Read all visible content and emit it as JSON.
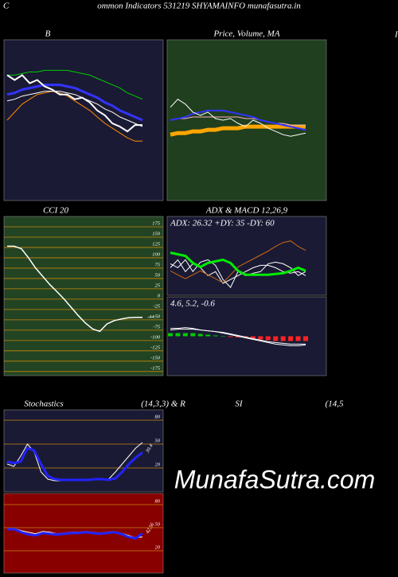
{
  "header": {
    "left": "C",
    "title": "ommon  Indicators 531219 SHYAMAINFO munafasutra.in",
    "right": "I"
  },
  "watermark": "MunafaSutra.com",
  "chart_data": [
    {
      "type": "line",
      "title": "B",
      "background": "#1a1a35",
      "ylim": [
        0,
        100
      ],
      "series": [
        {
          "color": "#00cc00",
          "width": 1,
          "values": [
            78,
            78,
            79,
            80,
            80,
            81,
            81,
            81,
            81,
            80,
            79,
            78,
            76,
            74,
            72,
            70,
            67,
            65,
            63
          ]
        },
        {
          "color": "#ff8c00",
          "width": 1,
          "values": [
            50,
            55,
            60,
            63,
            66,
            67,
            68,
            67,
            65,
            62,
            59,
            56,
            52,
            48,
            45,
            42,
            39,
            37,
            37
          ]
        },
        {
          "color": "#3333ff",
          "width": 3,
          "values": [
            66,
            67,
            69,
            70,
            71,
            72,
            72,
            72,
            71,
            70,
            68,
            66,
            64,
            61,
            59,
            56,
            54,
            52,
            50
          ]
        },
        {
          "color": "#ffffff",
          "width": 1,
          "values": [
            62,
            63,
            65,
            66,
            67,
            68,
            68,
            68,
            67,
            66,
            64,
            62,
            60,
            57,
            55,
            52,
            50,
            48,
            46
          ]
        },
        {
          "color": "#ffffff",
          "width": 2,
          "values": [
            78,
            75,
            78,
            73,
            75,
            71,
            69,
            66,
            66,
            63,
            64,
            61,
            56,
            53,
            48,
            46,
            43,
            47,
            47
          ]
        }
      ]
    },
    {
      "type": "line",
      "title": "Price, Volume, MA",
      "background": "#1f3f1f",
      "ylim": [
        0,
        100
      ],
      "series": [
        {
          "color": "#ffa500",
          "width": 5,
          "values": [
            41,
            42,
            42,
            43,
            43,
            44,
            44,
            45,
            45,
            45,
            46,
            46,
            46,
            46,
            46,
            46,
            46,
            46,
            46
          ]
        },
        {
          "color": "#ffb6c1",
          "width": 1,
          "values": [
            50,
            51,
            51,
            52,
            52,
            52,
            52,
            52,
            52,
            52,
            51,
            51,
            50,
            49,
            48,
            48,
            47,
            47,
            47
          ]
        },
        {
          "color": "#3333ff",
          "width": 2,
          "values": [
            50,
            51,
            52,
            54,
            55,
            56,
            56,
            56,
            55,
            54,
            53,
            52,
            50,
            49,
            48,
            47,
            46,
            45,
            44
          ]
        },
        {
          "color": "#ffffff",
          "width": 1,
          "values": [
            58,
            63,
            60,
            55,
            53,
            55,
            51,
            50,
            51,
            48,
            46,
            50,
            48,
            45,
            43,
            41,
            40,
            41,
            42
          ]
        }
      ]
    },
    {
      "type": "line",
      "title": "CCI 20",
      "background": "#234423",
      "grid": true,
      "grid_color": "#c8860a",
      "ylim": [
        -185,
        200
      ],
      "yticks": [
        175,
        150,
        125,
        100,
        75,
        50,
        25,
        0,
        -25,
        -50,
        -75,
        -100,
        -125,
        -150,
        -175
      ],
      "series": [
        {
          "color": "#ffffff",
          "width": 1.5,
          "end_label": true,
          "values": [
            128,
            128,
            122,
            100,
            75,
            55,
            35,
            18,
            0,
            -20,
            -40,
            -58,
            -72,
            -78,
            -60,
            -52,
            -48,
            -45,
            -44,
            -44
          ]
        }
      ]
    },
    {
      "type": "line",
      "title": "ADX  & MACD 12,26,9",
      "annotation": "ADX: 26.32  +DY: 35 -DY: 60",
      "background": "#1a1a35",
      "ylim": [
        0,
        100
      ],
      "series": [
        {
          "color": "#ffffff",
          "width": 1,
          "values": [
            40,
            35,
            45,
            30,
            42,
            45,
            38,
            20,
            10,
            30,
            25,
            28,
            30,
            40,
            42,
            40,
            35,
            25,
            30
          ]
        },
        {
          "color": "#ffffff",
          "width": 1,
          "values": [
            35,
            45,
            30,
            40,
            35,
            25,
            30,
            15,
            20,
            25,
            30,
            35,
            38,
            38,
            35,
            30,
            28,
            30,
            25
          ]
        },
        {
          "color": "#cd6a10",
          "width": 1,
          "values": [
            31,
            26,
            21,
            26,
            31,
            26,
            21,
            16,
            26,
            36,
            41,
            46,
            51,
            56,
            62,
            67,
            69,
            62,
            57
          ]
        },
        {
          "color": "#00ee00",
          "width": 3,
          "values": [
            54,
            52,
            50,
            41,
            36,
            41,
            43,
            45,
            41,
            31,
            26,
            26,
            26,
            26,
            27,
            28,
            31,
            35,
            31
          ]
        }
      ]
    },
    {
      "type": "line",
      "annotation": "4.6,  5.2,  -0.6",
      "background": "#1a1a35",
      "ylim": [
        -50,
        50
      ],
      "series": [
        {
          "type": "bar",
          "color": "#00cc00",
          "negative_color": "#ff2222",
          "values": [
            4,
            4,
            4,
            4,
            3,
            2,
            1,
            0.5,
            -1,
            -1.5,
            -2,
            -3,
            -4,
            -5,
            -6,
            -6,
            -6,
            -6,
            -6
          ]
        },
        {
          "color": "#ffffff",
          "width": 1,
          "values": [
            8,
            9,
            9,
            9,
            8,
            7,
            6,
            5,
            3,
            1,
            -1,
            -3,
            -5,
            -7,
            -8,
            -9,
            -10,
            -10,
            -10
          ]
        },
        {
          "color": "#ffffff",
          "width": 1,
          "values": [
            10,
            10,
            11,
            10,
            8,
            7,
            6,
            4,
            2,
            0,
            -2,
            -4,
            -6,
            -8,
            -10,
            -11,
            -12,
            -12,
            -11
          ]
        }
      ]
    },
    {
      "type": "line",
      "title": "Stochastics",
      "title_suffix": "(14,3,3) & R",
      "background": "#1a1a35",
      "grid": true,
      "grid_color": "#c8860a",
      "ylim": [
        -10,
        93
      ],
      "yticks": [
        80,
        50,
        20
      ],
      "series": [
        {
          "color": "#ffffff",
          "width": 1,
          "values": [
            25,
            22,
            35,
            50,
            40,
            15,
            6,
            4,
            4,
            4,
            4,
            5,
            5,
            6,
            5,
            6,
            15,
            25,
            35,
            45,
            52
          ]
        },
        {
          "color": "#2222ff",
          "width": 3,
          "end_label": true,
          "values": [
            28,
            26,
            28,
            45,
            42,
            25,
            10,
            6,
            5,
            5,
            5,
            5,
            5,
            6,
            6,
            5,
            7,
            15,
            25,
            33,
            39.4
          ]
        }
      ]
    },
    {
      "type": "line",
      "title": "SI",
      "title_suffix": "(14,5",
      "background": "#880000",
      "grid": true,
      "grid_color": "#c8860a",
      "ylim": [
        -9,
        94.5
      ],
      "yticks": [
        80,
        50,
        20
      ],
      "series": [
        {
          "color": "#ffffff",
          "width": 1,
          "values": [
            49,
            49,
            46,
            44,
            42,
            45,
            44,
            42,
            43,
            44,
            44,
            45,
            44,
            43,
            44,
            45,
            43,
            40,
            37,
            38
          ]
        },
        {
          "color": "#2222ff",
          "width": 3,
          "end_label": true,
          "values": [
            48,
            48,
            44,
            41,
            40,
            43,
            42,
            41,
            42,
            43,
            43,
            44,
            43,
            42,
            43,
            44,
            42,
            38,
            36,
            42.56
          ]
        }
      ]
    }
  ]
}
